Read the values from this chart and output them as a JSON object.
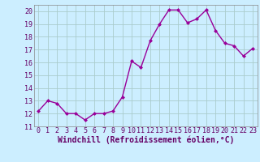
{
  "x": [
    0,
    1,
    2,
    3,
    4,
    5,
    6,
    7,
    8,
    9,
    10,
    11,
    12,
    13,
    14,
    15,
    16,
    17,
    18,
    19,
    20,
    21,
    22,
    23
  ],
  "y": [
    12.2,
    13.0,
    12.8,
    12.0,
    12.0,
    11.5,
    12.0,
    12.0,
    12.2,
    13.3,
    16.1,
    15.6,
    17.7,
    19.0,
    20.1,
    20.1,
    19.1,
    19.4,
    20.1,
    18.5,
    17.5,
    17.3,
    16.5,
    17.1
  ],
  "line_color": "#990099",
  "marker": "D",
  "marker_size": 2.0,
  "background_color": "#cceeff",
  "grid_color": "#aacccc",
  "xlabel": "Windchill (Refroidissement éolien,°C)",
  "xlabel_fontsize": 7,
  "ylim": [
    11,
    20.5
  ],
  "yticks": [
    11,
    12,
    13,
    14,
    15,
    16,
    17,
    18,
    19,
    20
  ],
  "xticks": [
    0,
    1,
    2,
    3,
    4,
    5,
    6,
    7,
    8,
    9,
    10,
    11,
    12,
    13,
    14,
    15,
    16,
    17,
    18,
    19,
    20,
    21,
    22,
    23
  ],
  "tick_fontsize": 6,
  "line_width": 1.0,
  "spine_color": "#888888"
}
